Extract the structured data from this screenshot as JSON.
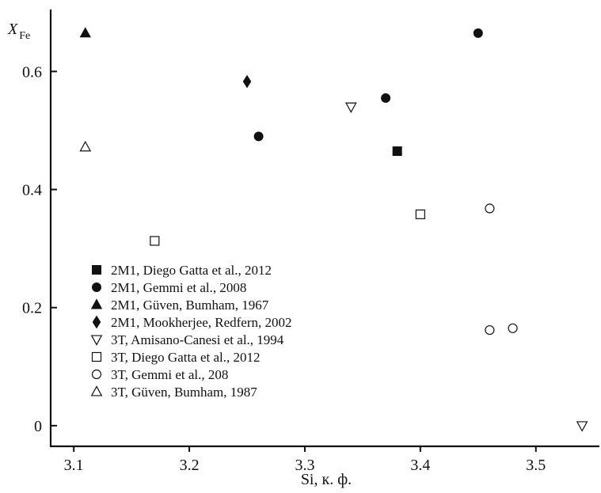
{
  "chart_data": {
    "type": "scatter",
    "xlabel": "Si, к. ф.",
    "ylabel": {
      "main": "X",
      "sub": "Fe"
    },
    "xlim": [
      3.08,
      3.555
    ],
    "ylim": [
      -0.035,
      0.705
    ],
    "xticks": [
      3.1,
      3.2,
      3.3,
      3.4,
      3.5
    ],
    "xtick_labels": [
      "3.1",
      "3.2",
      "3.3",
      "3.4",
      "3.5"
    ],
    "yticks": [
      0,
      0.2,
      0.4,
      0.6
    ],
    "ytick_labels": [
      "0",
      "0.2",
      "0.4",
      "0.6"
    ],
    "grid": false,
    "legend_position": "bottom-left",
    "series": [
      {
        "name": "2M1, Diego Gatta et al., 2012",
        "marker": "square-filled",
        "points": [
          [
            3.38,
            0.465
          ]
        ]
      },
      {
        "name": "2M1, Gemmi et al., 2008",
        "marker": "circle-filled",
        "points": [
          [
            3.45,
            0.665
          ],
          [
            3.37,
            0.555
          ],
          [
            3.26,
            0.49
          ]
        ]
      },
      {
        "name": "2M1, Güven, Bumham, 1967",
        "marker": "triangle-up-filled",
        "points": [
          [
            3.11,
            0.665
          ]
        ]
      },
      {
        "name": "2M1, Mookherjee, Redfern, 2002",
        "marker": "diamond-filled",
        "points": [
          [
            3.25,
            0.583
          ]
        ]
      },
      {
        "name": "3T, Amisano-Canesi et al., 1994",
        "marker": "triangle-down-open",
        "points": [
          [
            3.34,
            0.54
          ],
          [
            3.54,
            0.0
          ]
        ]
      },
      {
        "name": "3T, Diego Gatta et al., 2012",
        "marker": "square-open",
        "points": [
          [
            3.17,
            0.313
          ],
          [
            3.4,
            0.358
          ]
        ]
      },
      {
        "name": "3T, Gemmi et al., 208",
        "marker": "circle-open",
        "points": [
          [
            3.46,
            0.368
          ],
          [
            3.46,
            0.162
          ],
          [
            3.48,
            0.165
          ]
        ]
      },
      {
        "name": "3T, Güven, Bumham, 1987",
        "marker": "triangle-up-open",
        "points": [
          [
            3.11,
            0.472
          ]
        ]
      }
    ]
  }
}
